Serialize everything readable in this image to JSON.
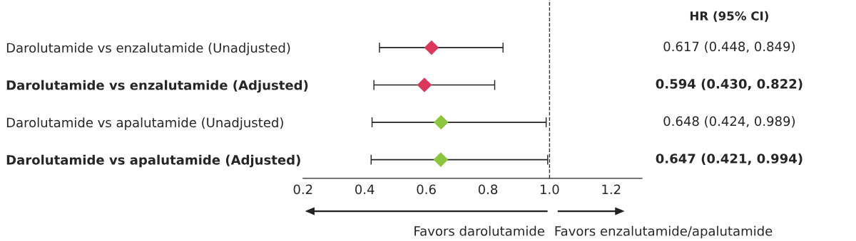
{
  "chart_data": [
    {
      "type": "scatter",
      "orientation": "horizontal",
      "marker": "diamond",
      "categories": [
        "Darolutamide vs enzalutamide (Unadjusted)",
        "Darolutamide vs enzalutamide (Adjusted)",
        "Darolutamide vs apalutamide (Unadjusted)",
        "Darolutamide vs apalutamide (Adjusted)"
      ],
      "values": [
        0.617,
        0.594,
        0.648,
        0.647
      ],
      "errors": [
        [
          0.448,
          0.849
        ],
        [
          0.43,
          0.822
        ],
        [
          0.424,
          0.989
        ],
        [
          0.421,
          0.994
        ]
      ],
      "colors": [
        "#d9375b",
        "#d9375b",
        "#8cc63e",
        "#8cc63e"
      ],
      "xlim": [
        0.2,
        1.3
      ],
      "xticks": [
        {
          "value": 0.2,
          "label": "0.2"
        },
        {
          "value": 0.4,
          "label": "0.4"
        },
        {
          "value": 0.6,
          "label": "0.6"
        },
        {
          "value": 0.8,
          "label": "0.8"
        },
        {
          "value": 1.0,
          "label": "1.0"
        },
        {
          "value": 1.2,
          "label": "1.2"
        }
      ],
      "ref_lines": [
        {
          "axis": "x",
          "value": 1.0,
          "line_style": "dashed",
          "color": "#333333"
        }
      ],
      "annotations": [
        "Favors darolutamide",
        "Favors enzalutamide/apalutamide"
      ],
      "grid": false,
      "legend": false
    },
    {
      "type": "other",
      "title": "HR (95% CI)",
      "annotations": [
        "0.617 (0.448, 0.849)",
        "0.594 (0.430, 0.822)",
        "0.648 (0.424, 0.989)",
        "0.647 (0.421, 0.994)"
      ]
    }
  ]
}
